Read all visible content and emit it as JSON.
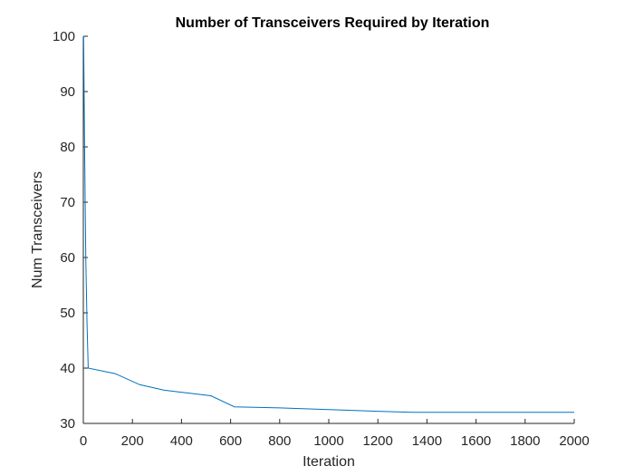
{
  "chart_data": {
    "type": "line",
    "title": "Number of Transceivers Required by Iteration",
    "xlabel": "Iteration",
    "ylabel": "Num Transceivers",
    "xlim": [
      0,
      2000
    ],
    "ylim": [
      30,
      100
    ],
    "xticks": [
      0,
      200,
      400,
      600,
      800,
      1000,
      1200,
      1400,
      1600,
      1800,
      2000
    ],
    "yticks": [
      30,
      40,
      50,
      60,
      70,
      80,
      90,
      100
    ],
    "grid": false,
    "colors": {
      "series": "#0072bd",
      "axes": "#262626"
    },
    "series": [
      {
        "x": [
          1,
          5,
          10,
          15,
          20,
          130,
          230,
          330,
          520,
          615,
          800,
          1000,
          1200,
          1340,
          1600,
          1800,
          2000
        ],
        "y": [
          100,
          80,
          60,
          48,
          40,
          39,
          37,
          36,
          35,
          33,
          32.8,
          32.5,
          32.2,
          32,
          32,
          32,
          32
        ]
      }
    ]
  }
}
